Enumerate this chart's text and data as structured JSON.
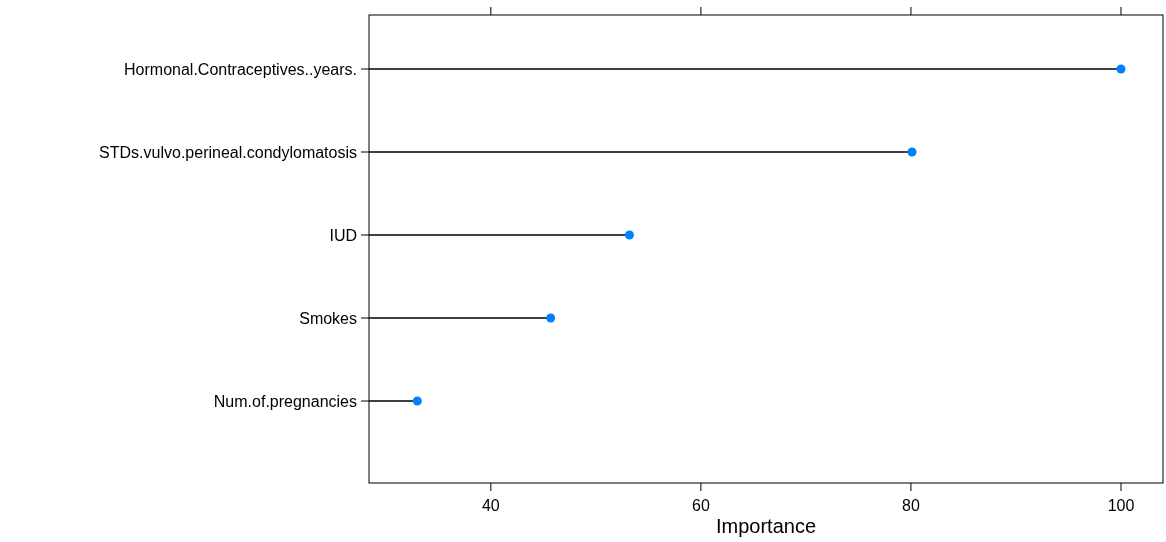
{
  "chart_data": {
    "type": "lollipop",
    "orientation": "horizontal",
    "xlabel": "Importance",
    "categories": [
      "Hormonal.Contraceptives..years.",
      "STDs.vulvo.perineal.condylomatosis",
      "IUD",
      "Smokes",
      "Num.of.pregnancies"
    ],
    "values": [
      100,
      80.1,
      53.2,
      45.7,
      33.0
    ],
    "color": "#0080ff",
    "marker": "circle",
    "xlim": [
      28.4,
      104
    ],
    "xticks": [
      40,
      60,
      80,
      100
    ],
    "grid": false
  }
}
